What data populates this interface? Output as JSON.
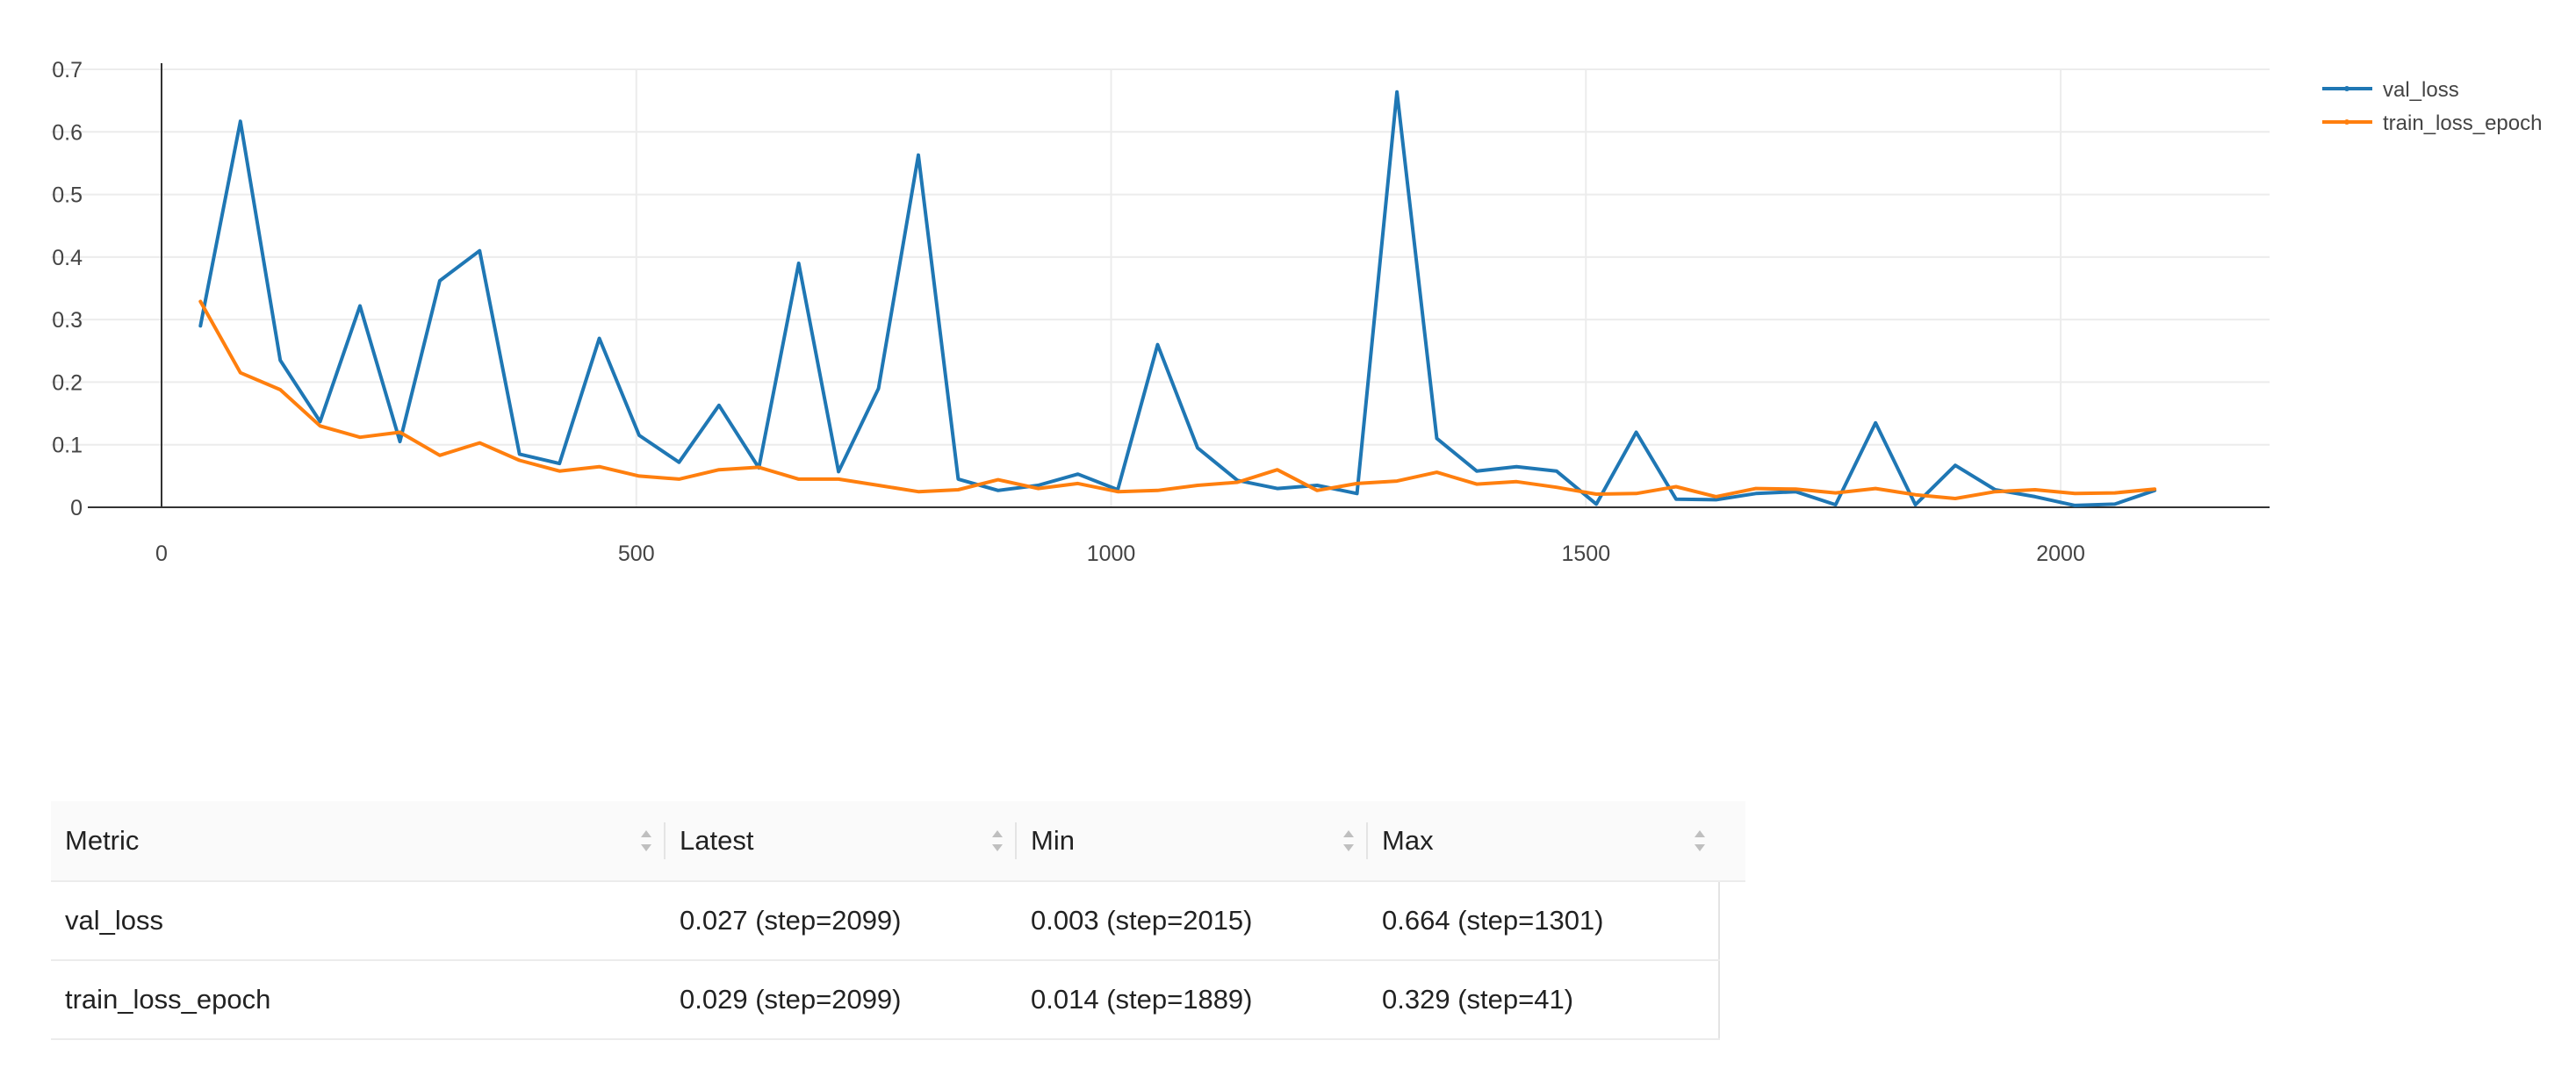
{
  "chart_data": {
    "type": "line",
    "xlim": [
      0,
      2220
    ],
    "ylim": [
      0,
      0.7
    ],
    "x_ticks": [
      0,
      500,
      1000,
      1500,
      2000
    ],
    "y_ticks": [
      0,
      0.1,
      0.2,
      0.3,
      0.4,
      0.5,
      0.6,
      0.7
    ],
    "x_tick_labels": [
      "0",
      "500",
      "1000",
      "1500",
      "2000"
    ],
    "y_tick_labels": [
      "0",
      "0.1",
      "0.2",
      "0.3",
      "0.4",
      "0.5",
      "0.6",
      "0.7"
    ],
    "grid": true,
    "legend_position": "top-right",
    "x": [
      41,
      83,
      125,
      167,
      209,
      251,
      293,
      335,
      377,
      419,
      461,
      503,
      545,
      587,
      629,
      671,
      713,
      755,
      797,
      839,
      881,
      923,
      965,
      1007,
      1049,
      1091,
      1133,
      1175,
      1217,
      1259,
      1301,
      1343,
      1385,
      1427,
      1469,
      1511,
      1553,
      1595,
      1637,
      1679,
      1721,
      1763,
      1805,
      1847,
      1889,
      1931,
      1973,
      2015,
      2057,
      2099
    ],
    "series": [
      {
        "name": "val_loss",
        "color": "#1f77b4",
        "values": [
          0.29,
          0.617,
          0.235,
          0.137,
          0.322,
          0.105,
          0.362,
          0.41,
          0.085,
          0.07,
          0.27,
          0.115,
          0.072,
          0.163,
          0.063,
          0.39,
          0.057,
          0.19,
          0.563,
          0.045,
          0.027,
          0.035,
          0.053,
          0.028,
          0.26,
          0.095,
          0.043,
          0.03,
          0.035,
          0.022,
          0.664,
          0.11,
          0.058,
          0.065,
          0.058,
          0.005,
          0.12,
          0.013,
          0.012,
          0.022,
          0.025,
          0.004,
          0.135,
          0.004,
          0.067,
          0.028,
          0.017,
          0.003,
          0.005,
          0.027
        ]
      },
      {
        "name": "train_loss_epoch",
        "color": "#ff7f0e",
        "values": [
          0.329,
          0.215,
          0.188,
          0.13,
          0.112,
          0.12,
          0.083,
          0.103,
          0.075,
          0.058,
          0.065,
          0.05,
          0.045,
          0.06,
          0.064,
          0.045,
          0.045,
          0.035,
          0.025,
          0.028,
          0.044,
          0.03,
          0.038,
          0.025,
          0.027,
          0.035,
          0.04,
          0.06,
          0.027,
          0.038,
          0.042,
          0.056,
          0.037,
          0.041,
          0.032,
          0.021,
          0.022,
          0.033,
          0.017,
          0.03,
          0.029,
          0.023,
          0.03,
          0.02,
          0.014,
          0.025,
          0.028,
          0.022,
          0.023,
          0.029
        ]
      }
    ]
  },
  "table": {
    "columns": [
      "Metric",
      "Latest",
      "Min",
      "Max"
    ],
    "rows": [
      {
        "metric": "val_loss",
        "latest": "0.027 (step=2099)",
        "min": "0.003 (step=2015)",
        "max": "0.664 (step=1301)"
      },
      {
        "metric": "train_loss_epoch",
        "latest": "0.029 (step=2099)",
        "min": "0.014 (step=1889)",
        "max": "0.329 (step=41)"
      }
    ]
  }
}
